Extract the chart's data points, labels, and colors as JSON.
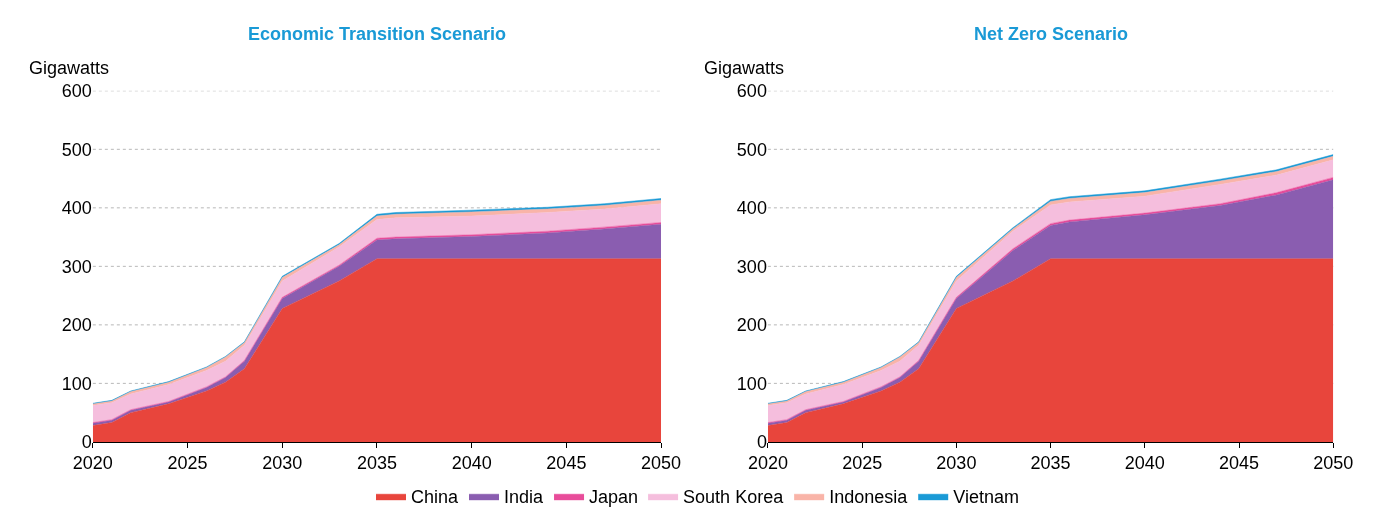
{
  "chart_data": [
    {
      "type": "area",
      "title": "Economic Transition Scenario",
      "ylabel": "Gigawatts",
      "stacked": true,
      "x": [
        2020,
        2021,
        2022,
        2024,
        2026,
        2027,
        2028,
        2030,
        2033,
        2035,
        2036,
        2040,
        2044,
        2047,
        2050
      ],
      "xlim": [
        2020,
        2050
      ],
      "xticks": [
        2020,
        2025,
        2030,
        2035,
        2040,
        2045,
        2050
      ],
      "ylim": [
        0,
        600
      ],
      "yticks": [
        0,
        100,
        200,
        300,
        400,
        500,
        600
      ],
      "grid": "y",
      "legend": "bottom",
      "series": [
        {
          "name": "China",
          "color": "#e8453c",
          "values": [
            28,
            33,
            50,
            65,
            87,
            102,
            125,
            228,
            275,
            313,
            313,
            313,
            313,
            313,
            313
          ]
        },
        {
          "name": "India",
          "color": "#8a5db0",
          "values": [
            4,
            4,
            4,
            3,
            6,
            8,
            13,
            17,
            25,
            32,
            34,
            38,
            44,
            51,
            59
          ]
        },
        {
          "name": "Japan",
          "color": "#e84c9a",
          "values": [
            1,
            1,
            1,
            1,
            1,
            1,
            1,
            2,
            2,
            3,
            3,
            3,
            3,
            3,
            3
          ]
        },
        {
          "name": "South Korea",
          "color": "#f5bedd",
          "values": [
            29,
            29,
            27,
            29,
            28,
            27,
            26,
            28,
            31,
            32,
            33,
            32,
            32,
            31,
            32
          ]
        },
        {
          "name": "Indonesia",
          "color": "#f9b4a8",
          "values": [
            3,
            3,
            4,
            4,
            5,
            7,
            5,
            6,
            4,
            6,
            6,
            7,
            6,
            6,
            6
          ]
        },
        {
          "name": "Vietnam",
          "color": "#1a9ad6",
          "values": [
            1,
            1,
            1,
            1,
            1,
            1,
            1,
            2,
            2,
            3,
            3,
            3,
            3,
            3,
            3
          ]
        }
      ]
    },
    {
      "type": "area",
      "title": "Net Zero Scenario",
      "ylabel": "Gigawatts",
      "stacked": true,
      "x": [
        2020,
        2021,
        2022,
        2024,
        2026,
        2027,
        2028,
        2030,
        2033,
        2035,
        2036,
        2040,
        2044,
        2047,
        2050
      ],
      "xlim": [
        2020,
        2050
      ],
      "xticks": [
        2020,
        2025,
        2030,
        2035,
        2040,
        2045,
        2050
      ],
      "ylim": [
        0,
        600
      ],
      "yticks": [
        0,
        100,
        200,
        300,
        400,
        500,
        600
      ],
      "grid": "y",
      "series": [
        {
          "color": "#e8453c",
          "values": [
            28,
            33,
            50,
            65,
            87,
            102,
            125,
            228,
            275,
            313,
            313,
            313,
            313,
            313,
            313
          ]
        },
        {
          "color": "#8a5db0",
          "values": [
            4,
            4,
            4,
            3,
            6,
            8,
            13,
            17,
            52,
            57,
            63,
            75,
            91,
            109,
            135
          ]
        },
        {
          "color": "#e84c9a",
          "values": [
            1,
            1,
            1,
            1,
            1,
            1,
            1,
            2,
            3,
            3,
            3,
            3,
            3,
            4,
            4
          ]
        },
        {
          "color": "#f5bedd",
          "values": [
            29,
            29,
            27,
            29,
            28,
            27,
            26,
            28,
            30,
            32,
            31,
            29,
            33,
            30,
            30
          ]
        },
        {
          "color": "#f9b4a8",
          "values": [
            3,
            3,
            4,
            4,
            5,
            7,
            5,
            6,
            4,
            6,
            6,
            6,
            6,
            6,
            6
          ]
        },
        {
          "color": "#1a9ad6",
          "values": [
            1,
            1,
            1,
            1,
            1,
            1,
            1,
            2,
            2,
            3,
            3,
            3,
            3,
            3,
            3
          ]
        }
      ]
    }
  ]
}
